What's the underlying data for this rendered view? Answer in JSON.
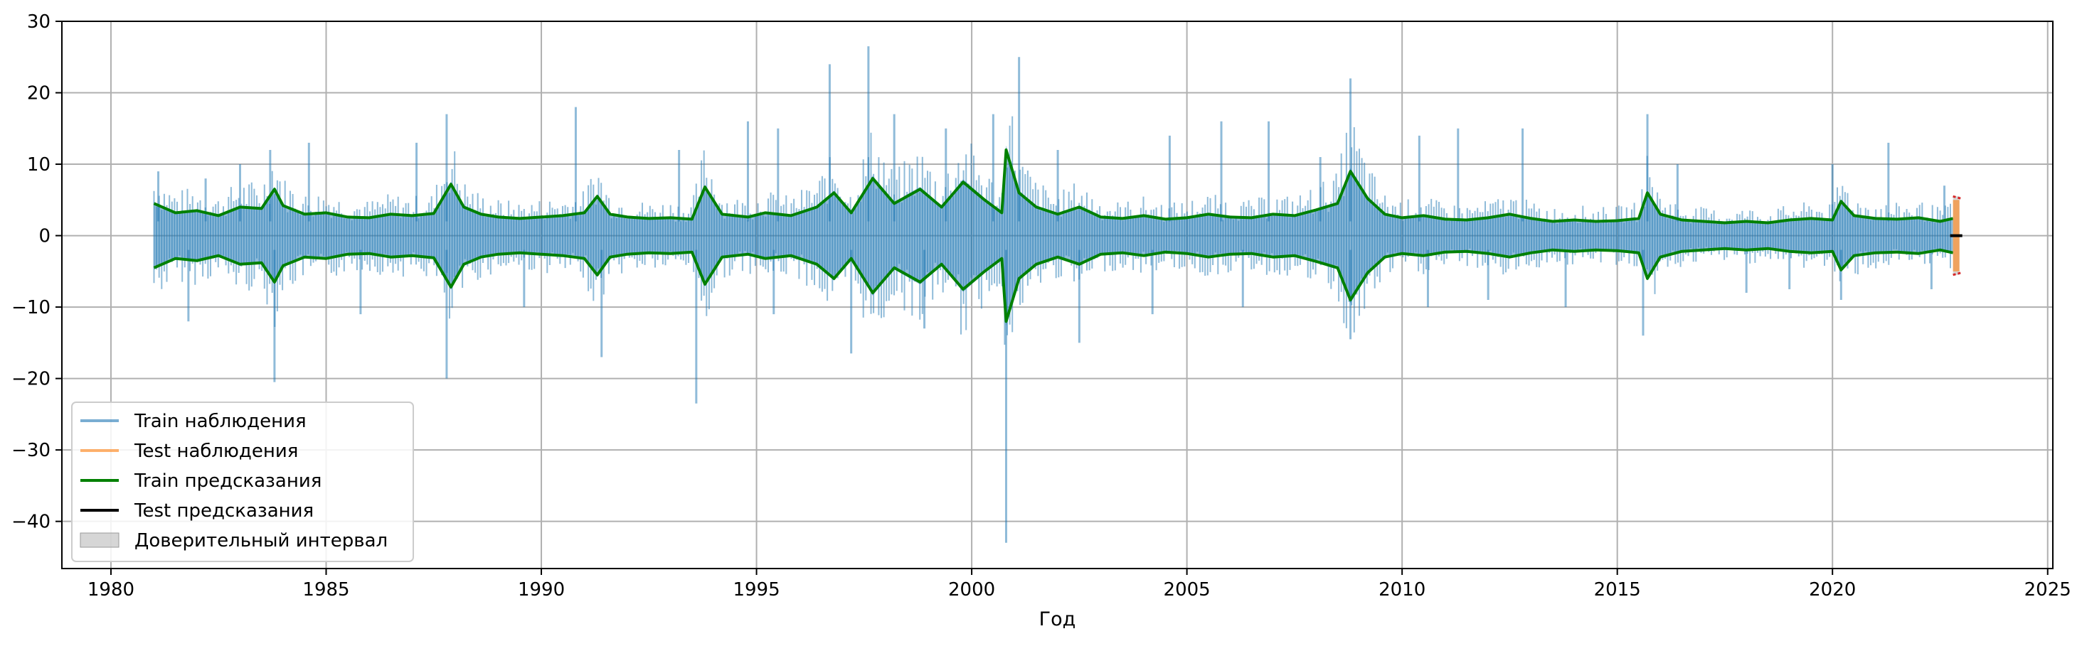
{
  "chart_data": {
    "type": "line",
    "title": "",
    "xlabel": "Год",
    "ylabel": "",
    "xlim": [
      1978.86,
      2025.12
    ],
    "ylim": [
      -46.6,
      30
    ],
    "x_ticks": [
      1980,
      1985,
      1990,
      1995,
      2000,
      2005,
      2010,
      2015,
      2020,
      2025
    ],
    "y_ticks": [
      30,
      20,
      10,
      0,
      -10,
      -20,
      -30,
      -40
    ],
    "y_tick_labels": [
      "30",
      "20",
      "10",
      "0",
      "−10",
      "−20",
      "−30",
      "−40"
    ],
    "grid": true,
    "legend_placement": "lower-left",
    "train_range": [
      1981.0,
      2022.8
    ],
    "test_range": [
      2022.8,
      2022.95
    ],
    "colors": {
      "train_observations": "#1f77b4",
      "test_observations": "#ff7f0e",
      "train_predictions": "#008000",
      "test_predictions": "#000000",
      "confidence_interval": "#bbbbbb",
      "interval_edge": "#d62728",
      "grid": "#b0b0b0"
    },
    "series": [
      {
        "name": "Train наблюдения"
      },
      {
        "name": "Test наблюдения"
      },
      {
        "name": "Train предсказания"
      },
      {
        "name": "Test предсказания"
      },
      {
        "name": "Доверительный интервал"
      }
    ],
    "train_prediction_envelope": {
      "x": [
        1981.0,
        1981.5,
        1982.0,
        1982.5,
        1983.0,
        1983.5,
        1983.8,
        1984.0,
        1984.5,
        1985.0,
        1985.5,
        1986.0,
        1986.5,
        1987.0,
        1987.5,
        1987.9,
        1988.2,
        1988.6,
        1989.0,
        1989.5,
        1990.0,
        1990.5,
        1991.0,
        1991.3,
        1991.6,
        1992.0,
        1992.5,
        1993.0,
        1993.5,
        1993.8,
        1994.2,
        1994.8,
        1995.2,
        1995.8,
        1996.4,
        1996.8,
        1997.2,
        1997.7,
        1998.2,
        1998.8,
        1999.3,
        1999.8,
        2000.3,
        2000.7,
        2000.8,
        2001.1,
        2001.5,
        2002.0,
        2002.5,
        2003.0,
        2003.5,
        2004.0,
        2004.5,
        2005.0,
        2005.5,
        2006.0,
        2006.5,
        2007.0,
        2007.5,
        2008.0,
        2008.5,
        2008.8,
        2009.2,
        2009.6,
        2010.0,
        2010.5,
        2011.0,
        2011.5,
        2012.0,
        2012.5,
        2013.0,
        2013.5,
        2014.0,
        2014.5,
        2015.0,
        2015.5,
        2015.7,
        2016.0,
        2016.5,
        2017.0,
        2017.5,
        2018.0,
        2018.5,
        2019.0,
        2019.5,
        2020.0,
        2020.2,
        2020.5,
        2021.0,
        2021.5,
        2022.0,
        2022.5,
        2022.8
      ],
      "upper": [
        4.5,
        3.2,
        3.5,
        2.8,
        4.0,
        3.8,
        6.5,
        4.2,
        3.0,
        3.2,
        2.6,
        2.5,
        3.0,
        2.8,
        3.1,
        7.2,
        4.0,
        3.0,
        2.6,
        2.4,
        2.6,
        2.8,
        3.2,
        5.5,
        3.0,
        2.6,
        2.4,
        2.5,
        2.3,
        6.8,
        3.0,
        2.6,
        3.2,
        2.8,
        4.0,
        6.0,
        3.2,
        8.0,
        4.5,
        6.5,
        4.0,
        7.5,
        5.0,
        3.2,
        12.0,
        6.0,
        4.0,
        3.0,
        4.0,
        2.6,
        2.4,
        2.8,
        2.3,
        2.5,
        3.0,
        2.6,
        2.5,
        3.0,
        2.8,
        3.6,
        4.5,
        9.0,
        5.2,
        3.0,
        2.5,
        2.8,
        2.3,
        2.2,
        2.5,
        3.0,
        2.4,
        2.0,
        2.2,
        2.0,
        2.1,
        2.4,
        6.0,
        3.0,
        2.2,
        2.0,
        1.8,
        2.0,
        1.8,
        2.2,
        2.4,
        2.2,
        4.8,
        2.8,
        2.4,
        2.3,
        2.5,
        2.0,
        2.4
      ],
      "lower": [
        -4.5,
        -3.2,
        -3.5,
        -2.8,
        -4.0,
        -3.8,
        -6.5,
        -4.2,
        -3.0,
        -3.2,
        -2.6,
        -2.5,
        -3.0,
        -2.8,
        -3.1,
        -7.2,
        -4.0,
        -3.0,
        -2.6,
        -2.4,
        -2.6,
        -2.8,
        -3.2,
        -5.5,
        -3.0,
        -2.6,
        -2.4,
        -2.5,
        -2.3,
        -6.8,
        -3.0,
        -2.6,
        -3.2,
        -2.8,
        -4.0,
        -6.0,
        -3.2,
        -8.0,
        -4.5,
        -6.5,
        -4.0,
        -7.5,
        -5.0,
        -3.2,
        -12.0,
        -6.0,
        -4.0,
        -3.0,
        -4.0,
        -2.6,
        -2.4,
        -2.8,
        -2.3,
        -2.5,
        -3.0,
        -2.6,
        -2.5,
        -3.0,
        -2.8,
        -3.6,
        -4.5,
        -9.0,
        -5.2,
        -3.0,
        -2.5,
        -2.8,
        -2.3,
        -2.2,
        -2.5,
        -3.0,
        -2.4,
        -2.0,
        -2.2,
        -2.0,
        -2.1,
        -2.4,
        -6.0,
        -3.0,
        -2.2,
        -2.0,
        -1.8,
        -2.0,
        -1.8,
        -2.2,
        -2.4,
        -2.2,
        -4.8,
        -2.8,
        -2.4,
        -2.3,
        -2.5,
        -2.0,
        -2.4
      ]
    },
    "train_observation_spikes": [
      {
        "x": 1981.1,
        "y": 9.0
      },
      {
        "x": 1982.2,
        "y": 8.0
      },
      {
        "x": 1983.0,
        "y": 10.0
      },
      {
        "x": 1983.7,
        "y": 12.0
      },
      {
        "x": 1984.6,
        "y": 13.0
      },
      {
        "x": 1987.1,
        "y": 13.0
      },
      {
        "x": 1987.8,
        "y": 17.0
      },
      {
        "x": 1990.8,
        "y": 18.0
      },
      {
        "x": 1993.2,
        "y": 12.0
      },
      {
        "x": 1994.8,
        "y": 16.0
      },
      {
        "x": 1995.5,
        "y": 15.0
      },
      {
        "x": 1996.7,
        "y": 24.0
      },
      {
        "x": 1997.6,
        "y": 26.5
      },
      {
        "x": 1998.2,
        "y": 17.0
      },
      {
        "x": 1999.4,
        "y": 15.0
      },
      {
        "x": 2000.5,
        "y": 17.0
      },
      {
        "x": 2001.1,
        "y": 25.0
      },
      {
        "x": 2002.0,
        "y": 12.0
      },
      {
        "x": 2004.6,
        "y": 14.0
      },
      {
        "x": 2005.8,
        "y": 16.0
      },
      {
        "x": 2006.9,
        "y": 16.0
      },
      {
        "x": 2008.1,
        "y": 11.0
      },
      {
        "x": 2008.8,
        "y": 22.0
      },
      {
        "x": 2010.4,
        "y": 14.0
      },
      {
        "x": 2011.3,
        "y": 15.0
      },
      {
        "x": 2012.8,
        "y": 15.0
      },
      {
        "x": 2015.7,
        "y": 17.0
      },
      {
        "x": 2016.4,
        "y": 10.0
      },
      {
        "x": 2020.0,
        "y": 10.0
      },
      {
        "x": 2021.3,
        "y": 13.0
      },
      {
        "x": 2022.6,
        "y": 7.0
      },
      {
        "x": 1981.8,
        "y": -12.0
      },
      {
        "x": 1983.8,
        "y": -20.5
      },
      {
        "x": 1985.8,
        "y": -11.0
      },
      {
        "x": 1987.8,
        "y": -20.0
      },
      {
        "x": 1989.6,
        "y": -10.0
      },
      {
        "x": 1991.4,
        "y": -17.0
      },
      {
        "x": 1993.6,
        "y": -23.5
      },
      {
        "x": 1995.4,
        "y": -11.0
      },
      {
        "x": 1997.2,
        "y": -16.5
      },
      {
        "x": 1998.9,
        "y": -13.0
      },
      {
        "x": 2000.8,
        "y": -43.0
      },
      {
        "x": 2002.5,
        "y": -15.0
      },
      {
        "x": 2004.2,
        "y": -11.0
      },
      {
        "x": 2006.3,
        "y": -10.0
      },
      {
        "x": 2008.8,
        "y": -14.5
      },
      {
        "x": 2010.6,
        "y": -10.0
      },
      {
        "x": 2012.0,
        "y": -9.0
      },
      {
        "x": 2013.8,
        "y": -10.0
      },
      {
        "x": 2015.6,
        "y": -14.0
      },
      {
        "x": 2018.0,
        "y": -8.0
      },
      {
        "x": 2019.0,
        "y": -7.5
      },
      {
        "x": 2020.2,
        "y": -9.0
      },
      {
        "x": 2022.3,
        "y": -7.5
      }
    ],
    "test": {
      "x": [
        2022.8,
        2022.95
      ],
      "observations": [
        -5.0,
        5.0
      ],
      "predictions": [
        0.0,
        0.0
      ],
      "interval_upper": 5.5,
      "interval_lower": -5.5
    }
  }
}
